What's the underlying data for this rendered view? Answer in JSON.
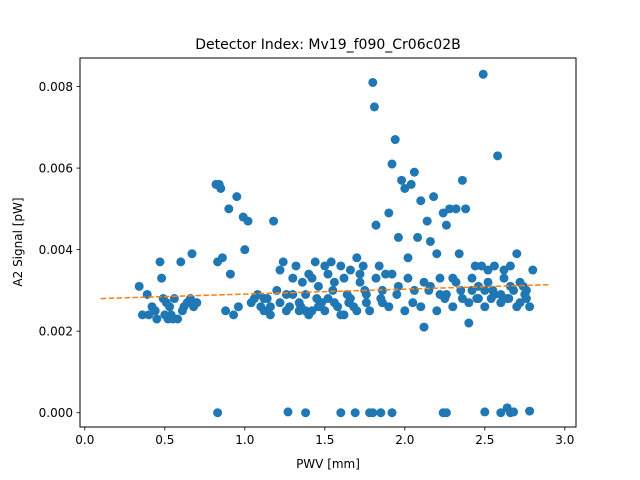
{
  "chart_data": {
    "type": "scatter",
    "title": "Detector Index: Mv19_f090_Cr06c02B",
    "xlabel": "PWV [mm]",
    "ylabel": "A2 Signal [pW]",
    "xlim": [
      -0.03,
      3.07
    ],
    "ylim": [
      -0.00035,
      0.0087
    ],
    "xticks": [
      0.0,
      0.5,
      1.0,
      1.5,
      2.0,
      2.5,
      3.0
    ],
    "xtick_labels": [
      "0.0",
      "0.5",
      "1.0",
      "1.5",
      "2.0",
      "2.5",
      "3.0"
    ],
    "yticks": [
      0.0,
      0.002,
      0.004,
      0.006,
      0.008
    ],
    "ytick_labels": [
      "0.000",
      "0.002",
      "0.004",
      "0.006",
      "0.008"
    ],
    "grid": false,
    "colors": {
      "points": "#1f77b4",
      "fit": "#ff7f0e"
    },
    "series": [
      {
        "name": "data",
        "kind": "scatter",
        "points": [
          [
            0.34,
            0.0031
          ],
          [
            0.36,
            0.0024
          ],
          [
            0.39,
            0.0029
          ],
          [
            0.4,
            0.0024
          ],
          [
            0.42,
            0.0026
          ],
          [
            0.44,
            0.0025
          ],
          [
            0.45,
            0.0023
          ],
          [
            0.47,
            0.0037
          ],
          [
            0.48,
            0.0033
          ],
          [
            0.49,
            0.0028
          ],
          [
            0.5,
            0.0024
          ],
          [
            0.51,
            0.0027
          ],
          [
            0.52,
            0.0023
          ],
          [
            0.53,
            0.0026
          ],
          [
            0.54,
            0.0024
          ],
          [
            0.55,
            0.0023
          ],
          [
            0.56,
            0.0028
          ],
          [
            0.58,
            0.0023
          ],
          [
            0.6,
            0.0037
          ],
          [
            0.61,
            0.0025
          ],
          [
            0.62,
            0.0026
          ],
          [
            0.64,
            0.0027
          ],
          [
            0.66,
            0.0028
          ],
          [
            0.67,
            0.0039
          ],
          [
            0.68,
            0.0026
          ],
          [
            0.7,
            0.0027
          ],
          [
            0.82,
            0.0056
          ],
          [
            0.83,
            0.0037
          ],
          [
            0.84,
            0.0056
          ],
          [
            0.85,
            0.0055
          ],
          [
            0.86,
            0.0038
          ],
          [
            0.88,
            0.0025
          ],
          [
            0.9,
            0.005
          ],
          [
            0.91,
            0.0034
          ],
          [
            0.93,
            0.0024
          ],
          [
            0.95,
            0.0053
          ],
          [
            0.96,
            0.0026
          ],
          [
            0.99,
            0.0048
          ],
          [
            1.0,
            0.004
          ],
          [
            1.02,
            0.0047
          ],
          [
            1.04,
            0.0027
          ],
          [
            1.06,
            0.0028
          ],
          [
            1.08,
            0.0029
          ],
          [
            1.1,
            0.0026
          ],
          [
            1.12,
            0.0025
          ],
          [
            1.14,
            0.0028
          ],
          [
            1.16,
            0.0024
          ],
          [
            1.18,
            0.0047
          ],
          [
            1.2,
            0.003
          ],
          [
            1.22,
            0.0035
          ],
          [
            1.24,
            0.0037
          ],
          [
            1.26,
            0.0029
          ],
          [
            1.28,
            0.0026
          ],
          [
            1.3,
            0.0033
          ],
          [
            1.32,
            0.0036
          ],
          [
            1.34,
            0.0025
          ],
          [
            1.36,
            0.0032
          ],
          [
            1.38,
            0.0029
          ],
          [
            1.4,
            0.0034
          ],
          [
            1.42,
            0.0025
          ],
          [
            1.44,
            0.0037
          ],
          [
            1.46,
            0.0031
          ],
          [
            1.48,
            0.0027
          ],
          [
            1.5,
            0.0036
          ],
          [
            1.52,
            0.0028
          ],
          [
            1.54,
            0.0037
          ],
          [
            1.56,
            0.0032
          ],
          [
            1.58,
            0.0026
          ],
          [
            1.6,
            0.0036
          ],
          [
            1.62,
            0.0024
          ],
          [
            1.64,
            0.0029
          ],
          [
            1.66,
            0.0035
          ],
          [
            1.68,
            0.0026
          ],
          [
            1.7,
            0.0038
          ],
          [
            1.72,
            0.0032
          ],
          [
            1.74,
            0.0036
          ],
          [
            1.76,
            0.0029
          ],
          [
            1.78,
            0.0025
          ],
          [
            1.8,
            0.0081
          ],
          [
            1.81,
            0.0075
          ],
          [
            1.82,
            0.0046
          ],
          [
            1.84,
            0.0036
          ],
          [
            1.86,
            0.0027
          ],
          [
            1.88,
            0.0034
          ],
          [
            1.9,
            0.0049
          ],
          [
            1.92,
            0.0061
          ],
          [
            1.94,
            0.0067
          ],
          [
            1.96,
            0.0043
          ],
          [
            1.98,
            0.0057
          ],
          [
            2.0,
            0.0055
          ],
          [
            2.02,
            0.0038
          ],
          [
            2.04,
            0.0056
          ],
          [
            2.06,
            0.0059
          ],
          [
            2.08,
            0.0043
          ],
          [
            2.1,
            0.0052
          ],
          [
            2.12,
            0.0021
          ],
          [
            2.14,
            0.0047
          ],
          [
            2.16,
            0.0042
          ],
          [
            2.18,
            0.0053
          ],
          [
            2.2,
            0.0039
          ],
          [
            2.22,
            0.0029
          ],
          [
            2.24,
            0.0049
          ],
          [
            2.26,
            0.0046
          ],
          [
            2.28,
            0.005
          ],
          [
            2.3,
            0.0033
          ],
          [
            2.32,
            0.005
          ],
          [
            2.34,
            0.0039
          ],
          [
            2.36,
            0.0057
          ],
          [
            2.38,
            0.005
          ],
          [
            2.4,
            0.0022
          ],
          [
            2.42,
            0.003
          ],
          [
            2.44,
            0.0036
          ],
          [
            2.46,
            0.0028
          ],
          [
            2.48,
            0.0036
          ],
          [
            2.49,
            0.0083
          ],
          [
            2.5,
            0.003
          ],
          [
            2.52,
            0.0035
          ],
          [
            2.54,
            0.0028
          ],
          [
            2.56,
            0.0036
          ],
          [
            2.58,
            0.0063
          ],
          [
            2.6,
            0.0029
          ],
          [
            2.62,
            0.0035
          ],
          [
            2.64,
            0.0028
          ],
          [
            2.66,
            0.0036
          ],
          [
            2.68,
            0.003
          ],
          [
            2.7,
            0.0039
          ],
          [
            2.72,
            0.0027
          ],
          [
            2.74,
            0.0031
          ],
          [
            2.76,
            0.0028
          ],
          [
            2.78,
            0.0026
          ],
          [
            2.8,
            0.0035
          ],
          [
            1.3,
            0.0029
          ],
          [
            1.35,
            0.0026
          ],
          [
            1.45,
            0.0028
          ],
          [
            1.55,
            0.003
          ],
          [
            1.65,
            0.0027
          ],
          [
            1.75,
            0.003
          ],
          [
            1.85,
            0.0028
          ],
          [
            1.95,
            0.0029
          ],
          [
            2.05,
            0.0027
          ],
          [
            2.15,
            0.003
          ],
          [
            2.25,
            0.0028
          ],
          [
            2.35,
            0.003
          ],
          [
            2.45,
            0.0028
          ],
          [
            2.55,
            0.003
          ],
          [
            2.65,
            0.0028
          ],
          [
            2.75,
            0.0029
          ],
          [
            1.4,
            0.0024
          ],
          [
            1.5,
            0.0025
          ],
          [
            1.6,
            0.0024
          ],
          [
            1.7,
            0.0025
          ],
          [
            1.9,
            0.0026
          ],
          [
            2.0,
            0.0025
          ],
          [
            2.1,
            0.0026
          ],
          [
            2.2,
            0.0025
          ],
          [
            2.3,
            0.0026
          ],
          [
            2.4,
            0.0027
          ],
          [
            2.5,
            0.0026
          ],
          [
            2.6,
            0.0027
          ],
          [
            2.7,
            0.0026
          ],
          [
            1.42,
            0.0033
          ],
          [
            1.52,
            0.0034
          ],
          [
            1.62,
            0.0033
          ],
          [
            1.72,
            0.0034
          ],
          [
            1.82,
            0.0033
          ],
          [
            1.92,
            0.0034
          ],
          [
            2.02,
            0.0033
          ],
          [
            2.12,
            0.0032
          ],
          [
            2.22,
            0.0033
          ],
          [
            2.32,
            0.0032
          ],
          [
            2.42,
            0.0033
          ],
          [
            2.52,
            0.0032
          ],
          [
            2.62,
            0.0033
          ],
          [
            2.72,
            0.0032
          ],
          [
            1.12,
            0.0028
          ],
          [
            1.16,
            0.0026
          ],
          [
            1.22,
            0.0027
          ],
          [
            1.26,
            0.0025
          ],
          [
            1.34,
            0.0027
          ],
          [
            1.38,
            0.0025
          ],
          [
            1.46,
            0.0026
          ],
          [
            1.56,
            0.0027
          ],
          [
            1.66,
            0.0028
          ],
          [
            1.76,
            0.0027
          ],
          [
            1.86,
            0.003
          ],
          [
            1.96,
            0.0031
          ],
          [
            2.06,
            0.003
          ],
          [
            2.16,
            0.0031
          ],
          [
            2.26,
            0.0029
          ],
          [
            2.36,
            0.0028
          ],
          [
            2.46,
            0.0031
          ],
          [
            2.56,
            0.0029
          ],
          [
            2.66,
            0.0031
          ],
          [
            2.76,
            0.003
          ],
          [
            0.83,
            0.0
          ],
          [
            1.27,
            2e-05
          ],
          [
            1.38,
            0.0
          ],
          [
            1.6,
            0.0
          ],
          [
            1.69,
            0.0
          ],
          [
            1.78,
            0.0
          ],
          [
            1.8,
            0.0
          ],
          [
            1.85,
            0.0
          ],
          [
            1.92,
            0.0
          ],
          [
            2.24,
            0.0
          ],
          [
            2.26,
            0.0
          ],
          [
            2.5,
            2e-05
          ],
          [
            2.6,
            0.0
          ],
          [
            2.64,
            0.00012
          ],
          [
            2.66,
            0.0
          ],
          [
            2.68,
            2e-05
          ],
          [
            2.78,
            4e-05
          ]
        ]
      },
      {
        "name": "fit",
        "kind": "line",
        "style": "dashed",
        "x": [
          0.1,
          2.9
        ],
        "y": [
          0.0028,
          0.00314
        ]
      }
    ]
  }
}
